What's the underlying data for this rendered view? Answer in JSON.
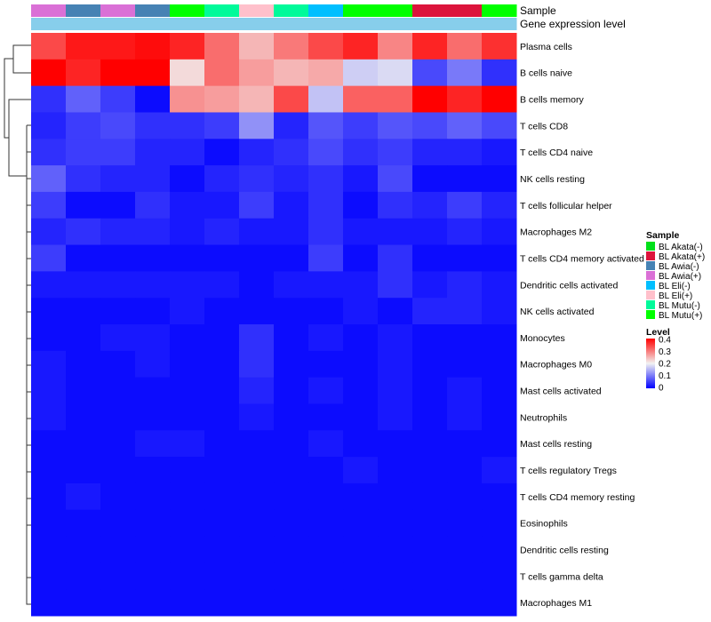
{
  "chart_data": {
    "type": "heatmap",
    "annotation_titles": [
      "Sample",
      "Gene expression level"
    ],
    "column_samples": [
      "BL Awia(+)",
      "BL Awia(-)",
      "BL Awia(+)",
      "BL Awia(-)",
      "BL Mutu(+)",
      "BL Mutu(-)",
      "BL Eli(+)",
      "BL Mutu(-)",
      "BL Eli(-)",
      "BL Mutu(+)",
      "BL Mutu(+)",
      "BL Akata(+)",
      "BL Akata(+)",
      "BL Mutu(+)"
    ],
    "rows": [
      "Plasma cells",
      "B cells naive",
      "B cells memory",
      "T cells CD8",
      "T cells CD4 naive",
      "NK cells resting",
      "T cells follicular helper",
      "Macrophages M2",
      "T cells CD4 memory activated",
      "Dendritic cells activated",
      "NK cells activated",
      "Monocytes",
      "Macrophages M0",
      "Mast cells activated",
      "Neutrophils",
      "Mast cells resting",
      "T cells regulatory  Tregs",
      "T cells CD4 memory resting",
      "Eosinophils",
      "Dendritic cells resting",
      "T cells gamma delta",
      "Macrophages M1"
    ],
    "values": [
      [
        0.34,
        0.38,
        0.38,
        0.39,
        0.37,
        0.31,
        0.25,
        0.3,
        0.34,
        0.37,
        0.29,
        0.37,
        0.31,
        0.36
      ],
      [
        0.4,
        0.37,
        0.4,
        0.4,
        0.22,
        0.31,
        0.27,
        0.25,
        0.26,
        0.17,
        0.18,
        0.06,
        0.1,
        0.04
      ],
      [
        0.04,
        0.08,
        0.05,
        0.01,
        0.28,
        0.27,
        0.25,
        0.34,
        0.16,
        0.32,
        0.32,
        0.4,
        0.37,
        0.4
      ],
      [
        0.03,
        0.05,
        0.06,
        0.04,
        0.04,
        0.05,
        0.12,
        0.03,
        0.07,
        0.05,
        0.07,
        0.06,
        0.08,
        0.06
      ],
      [
        0.04,
        0.05,
        0.05,
        0.03,
        0.03,
        0.01,
        0.03,
        0.04,
        0.06,
        0.04,
        0.05,
        0.03,
        0.03,
        0.02
      ],
      [
        0.08,
        0.04,
        0.03,
        0.03,
        0.01,
        0.03,
        0.04,
        0.03,
        0.04,
        0.02,
        0.06,
        0.01,
        0.01,
        0.01
      ],
      [
        0.05,
        0.01,
        0.01,
        0.04,
        0.02,
        0.02,
        0.05,
        0.02,
        0.04,
        0.01,
        0.04,
        0.03,
        0.05,
        0.03
      ],
      [
        0.03,
        0.04,
        0.03,
        0.03,
        0.02,
        0.03,
        0.02,
        0.02,
        0.04,
        0.02,
        0.02,
        0.02,
        0.03,
        0.02
      ],
      [
        0.05,
        0.01,
        0.01,
        0.01,
        0.01,
        0.01,
        0.01,
        0.01,
        0.05,
        0.01,
        0.04,
        0.01,
        0.01,
        0.01
      ],
      [
        0.02,
        0.02,
        0.02,
        0.02,
        0.02,
        0.02,
        0.01,
        0.02,
        0.02,
        0.02,
        0.04,
        0.02,
        0.03,
        0.02
      ],
      [
        0.01,
        0.01,
        0.01,
        0.01,
        0.02,
        0.01,
        0.01,
        0.01,
        0.01,
        0.02,
        0.01,
        0.03,
        0.03,
        0.02
      ],
      [
        0.01,
        0.01,
        0.02,
        0.02,
        0.01,
        0.01,
        0.04,
        0.01,
        0.02,
        0.01,
        0.02,
        0.01,
        0.01,
        0.01
      ],
      [
        0.02,
        0.01,
        0.01,
        0.02,
        0.01,
        0.01,
        0.04,
        0.01,
        0.01,
        0.01,
        0.02,
        0.01,
        0.01,
        0.01
      ],
      [
        0.02,
        0.01,
        0.01,
        0.01,
        0.01,
        0.01,
        0.03,
        0.01,
        0.02,
        0.01,
        0.02,
        0.01,
        0.02,
        0.01
      ],
      [
        0.02,
        0.01,
        0.01,
        0.01,
        0.01,
        0.01,
        0.02,
        0.01,
        0.01,
        0.01,
        0.02,
        0.01,
        0.02,
        0.01
      ],
      [
        0.01,
        0.01,
        0.01,
        0.02,
        0.02,
        0.01,
        0.01,
        0.01,
        0.02,
        0.01,
        0.01,
        0.01,
        0.01,
        0.01
      ],
      [
        0.01,
        0.01,
        0.01,
        0.01,
        0.01,
        0.01,
        0.01,
        0.01,
        0.01,
        0.02,
        0.01,
        0.01,
        0.01,
        0.02
      ],
      [
        0.01,
        0.02,
        0.01,
        0.01,
        0.01,
        0.01,
        0.01,
        0.01,
        0.01,
        0.01,
        0.01,
        0.01,
        0.01,
        0.01
      ],
      [
        0.01,
        0.01,
        0.01,
        0.01,
        0.01,
        0.01,
        0.01,
        0.01,
        0.01,
        0.01,
        0.01,
        0.01,
        0.01,
        0.01
      ],
      [
        0.01,
        0.01,
        0.01,
        0.01,
        0.01,
        0.01,
        0.01,
        0.01,
        0.01,
        0.01,
        0.01,
        0.01,
        0.01,
        0.01
      ],
      [
        0.01,
        0.01,
        0.01,
        0.01,
        0.01,
        0.01,
        0.01,
        0.01,
        0.01,
        0.01,
        0.01,
        0.01,
        0.01,
        0.01
      ],
      [
        0.01,
        0.01,
        0.01,
        0.01,
        0.01,
        0.01,
        0.01,
        0.01,
        0.01,
        0.01,
        0.01,
        0.01,
        0.01,
        0.01
      ]
    ],
    "color_scale": {
      "range": [
        0,
        0.4
      ],
      "stops": [
        {
          "value": 0,
          "color": "#0000ff"
        },
        {
          "value": 0.2,
          "color": "#f2f2f2"
        },
        {
          "value": 0.4,
          "color": "#ff0000"
        }
      ]
    },
    "legend_sample": {
      "title": "Sample",
      "items": [
        {
          "label": "BL Akata(-)",
          "color": "#00e01a"
        },
        {
          "label": "BL Akata(+)",
          "color": "#dc143c"
        },
        {
          "label": "BL Awia(-)",
          "color": "#4682b4"
        },
        {
          "label": "BL Awia(+)",
          "color": "#da70d6"
        },
        {
          "label": "BL Eli(-)",
          "color": "#00bfff"
        },
        {
          "label": "BL Eli(+)",
          "color": "#ffc0cb"
        },
        {
          "label": "BL Mutu(-)",
          "color": "#00fa9a"
        },
        {
          "label": "BL Mutu(+)",
          "color": "#00ff00"
        }
      ]
    },
    "legend_level": {
      "title": "Level",
      "ticks": [
        "0.4",
        "0.3",
        "0.2",
        "0.1",
        "0"
      ]
    },
    "expression_level_color": "#87ceeb"
  }
}
